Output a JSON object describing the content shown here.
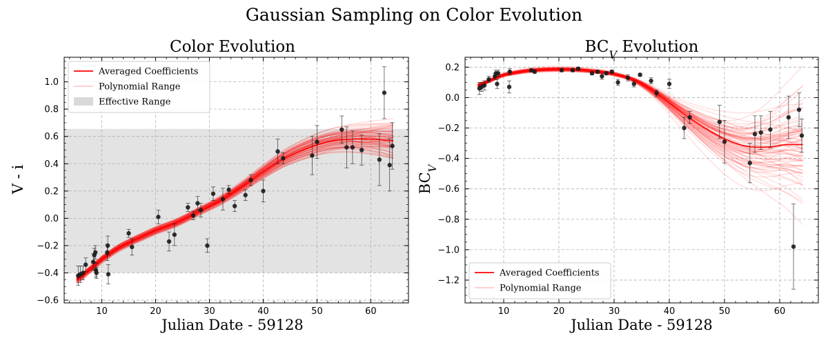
{
  "figure": {
    "title": "Gaussian Sampling on Color Evolution",
    "colors": {
      "mean": "#ff0000",
      "sample": "#ff0000",
      "point": "#1a1a1a",
      "band": "#d9d9d9",
      "grid": "#b0b0b0"
    }
  },
  "chart_data": [
    {
      "type": "scatter",
      "title": "Color Evolution",
      "xlabel": "Julian Date - 59128",
      "ylabel": "V - i",
      "xlim": [
        3,
        67
      ],
      "ylim": [
        -0.62,
        1.18
      ],
      "xticks": [
        10,
        20,
        30,
        40,
        50,
        60
      ],
      "yticks": [
        -0.6,
        -0.4,
        -0.2,
        0.0,
        0.2,
        0.4,
        0.6,
        0.8,
        1.0
      ],
      "ytick_labels": [
        "−0.6",
        "−0.4",
        "−0.2",
        "0.0",
        "0.2",
        "0.4",
        "0.6",
        "0.8",
        "1.0"
      ],
      "grid": true,
      "legend_position": "upper-left",
      "effective_range": [
        -0.4,
        0.655
      ],
      "legend": [
        "Averaged Coefficients",
        "Polynomial Range",
        "Effective Range"
      ],
      "points": [
        {
          "x": 5.6,
          "y": -0.42,
          "err": 0.07
        },
        {
          "x": 6.0,
          "y": -0.41,
          "err": 0.06
        },
        {
          "x": 6.5,
          "y": -0.4,
          "err": 0.05
        },
        {
          "x": 7.0,
          "y": -0.34,
          "err": 0.05
        },
        {
          "x": 8.4,
          "y": -0.32,
          "err": 0.06
        },
        {
          "x": 8.6,
          "y": -0.27,
          "err": 0.05
        },
        {
          "x": 8.8,
          "y": -0.25,
          "err": 0.05
        },
        {
          "x": 8.9,
          "y": -0.38,
          "err": 0.05
        },
        {
          "x": 9.0,
          "y": -0.4,
          "err": 0.04
        },
        {
          "x": 11.0,
          "y": -0.25,
          "err": 0.06
        },
        {
          "x": 11.1,
          "y": -0.2,
          "err": 0.07
        },
        {
          "x": 11.2,
          "y": -0.41,
          "err": 0.07
        },
        {
          "x": 15.0,
          "y": -0.11,
          "err": 0.03
        },
        {
          "x": 15.6,
          "y": -0.21,
          "err": 0.06
        },
        {
          "x": 20.5,
          "y": 0.01,
          "err": 0.05
        },
        {
          "x": 22.5,
          "y": -0.17,
          "err": 0.07
        },
        {
          "x": 23.5,
          "y": -0.12,
          "err": 0.08
        },
        {
          "x": 26.0,
          "y": 0.08,
          "err": 0.03
        },
        {
          "x": 27.0,
          "y": 0.02,
          "err": 0.03
        },
        {
          "x": 27.8,
          "y": 0.11,
          "err": 0.05
        },
        {
          "x": 28.4,
          "y": 0.06,
          "err": 0.05
        },
        {
          "x": 29.6,
          "y": -0.2,
          "err": 0.05
        },
        {
          "x": 30.7,
          "y": 0.18,
          "err": 0.05
        },
        {
          "x": 32.5,
          "y": 0.14,
          "err": 0.08
        },
        {
          "x": 33.6,
          "y": 0.21,
          "err": 0.03
        },
        {
          "x": 34.7,
          "y": 0.09,
          "err": 0.04
        },
        {
          "x": 36.7,
          "y": 0.17,
          "err": 0.04
        },
        {
          "x": 37.7,
          "y": 0.28,
          "err": 0.04
        },
        {
          "x": 40.0,
          "y": 0.2,
          "err": 0.08
        },
        {
          "x": 42.7,
          "y": 0.49,
          "err": 0.09
        },
        {
          "x": 43.7,
          "y": 0.44,
          "err": 0.04
        },
        {
          "x": 49.1,
          "y": 0.46,
          "err": 0.14
        },
        {
          "x": 50.0,
          "y": 0.56,
          "err": 0.12
        },
        {
          "x": 54.6,
          "y": 0.65,
          "err": 0.1
        },
        {
          "x": 55.5,
          "y": 0.52,
          "err": 0.15
        },
        {
          "x": 56.6,
          "y": 0.52,
          "err": 0.12
        },
        {
          "x": 58.3,
          "y": 0.5,
          "err": 0.11
        },
        {
          "x": 61.6,
          "y": 0.43,
          "err": 0.19
        },
        {
          "x": 62.5,
          "y": 0.92,
          "err": 0.19
        },
        {
          "x": 63.5,
          "y": 0.39,
          "err": 0.19
        },
        {
          "x": 64.0,
          "y": 0.53,
          "err": 0.17
        }
      ],
      "mean_curve": [
        [
          5.3,
          -0.45
        ],
        [
          8,
          -0.37
        ],
        [
          10,
          -0.3
        ],
        [
          13,
          -0.22
        ],
        [
          16,
          -0.16
        ],
        [
          20,
          -0.09
        ],
        [
          24,
          -0.03
        ],
        [
          28,
          0.05
        ],
        [
          32,
          0.13
        ],
        [
          36,
          0.23
        ],
        [
          40,
          0.34
        ],
        [
          44,
          0.44
        ],
        [
          48,
          0.51
        ],
        [
          52,
          0.56
        ],
        [
          56,
          0.58
        ],
        [
          60,
          0.58
        ],
        [
          64.2,
          0.57
        ]
      ]
    },
    {
      "type": "scatter",
      "title": "BC$_V$ Evolution",
      "xlabel": "Julian Date - 59128",
      "ylabel": "BC$_V$",
      "xlim": [
        3,
        67
      ],
      "ylim": [
        -1.35,
        0.265
      ],
      "xticks": [
        10,
        20,
        30,
        40,
        50,
        60
      ],
      "yticks": [
        -1.2,
        -1.0,
        -0.8,
        -0.6,
        -0.4,
        -0.2,
        0.0,
        0.2
      ],
      "ytick_labels": [
        "−1.2",
        "−1.0",
        "−0.8",
        "−0.6",
        "−0.4",
        "−0.2",
        "0.0",
        "0.2"
      ],
      "grid": true,
      "legend_position": "lower-left",
      "legend": [
        "Averaged Coefficients",
        "Polynomial Range"
      ],
      "points": [
        {
          "x": 5.6,
          "y": 0.06,
          "err": 0.04
        },
        {
          "x": 6.0,
          "y": 0.07,
          "err": 0.03
        },
        {
          "x": 6.5,
          "y": 0.08,
          "err": 0.03
        },
        {
          "x": 7.3,
          "y": 0.12,
          "err": 0.02
        },
        {
          "x": 8.4,
          "y": 0.14,
          "err": 0.02
        },
        {
          "x": 8.6,
          "y": 0.16,
          "err": 0.02
        },
        {
          "x": 8.8,
          "y": 0.09,
          "err": 0.03
        },
        {
          "x": 9.0,
          "y": 0.16,
          "err": 0.02
        },
        {
          "x": 11.0,
          "y": 0.07,
          "err": 0.04
        },
        {
          "x": 11.1,
          "y": 0.17,
          "err": 0.02
        },
        {
          "x": 15.0,
          "y": 0.18,
          "err": 0.01
        },
        {
          "x": 15.6,
          "y": 0.17,
          "err": 0.01
        },
        {
          "x": 20.5,
          "y": 0.18,
          "err": 0.01
        },
        {
          "x": 22.5,
          "y": 0.18,
          "err": 0.01
        },
        {
          "x": 23.5,
          "y": 0.19,
          "err": 0.01
        },
        {
          "x": 26.0,
          "y": 0.16,
          "err": 0.01
        },
        {
          "x": 27.0,
          "y": 0.17,
          "err": 0.01
        },
        {
          "x": 27.8,
          "y": 0.14,
          "err": 0.02
        },
        {
          "x": 28.6,
          "y": 0.16,
          "err": 0.01
        },
        {
          "x": 29.6,
          "y": 0.17,
          "err": 0.01
        },
        {
          "x": 30.7,
          "y": 0.1,
          "err": 0.02
        },
        {
          "x": 32.5,
          "y": 0.13,
          "err": 0.02
        },
        {
          "x": 33.6,
          "y": 0.09,
          "err": 0.02
        },
        {
          "x": 34.7,
          "y": 0.15,
          "err": 0.01
        },
        {
          "x": 36.7,
          "y": 0.11,
          "err": 0.02
        },
        {
          "x": 37.7,
          "y": 0.03,
          "err": 0.02
        },
        {
          "x": 40.0,
          "y": 0.09,
          "err": 0.03
        },
        {
          "x": 42.7,
          "y": -0.2,
          "err": 0.07
        },
        {
          "x": 43.7,
          "y": -0.13,
          "err": 0.04
        },
        {
          "x": 49.1,
          "y": -0.16,
          "err": 0.11
        },
        {
          "x": 50.0,
          "y": -0.29,
          "err": 0.14
        },
        {
          "x": 54.6,
          "y": -0.43,
          "err": 0.13
        },
        {
          "x": 55.5,
          "y": -0.24,
          "err": 0.12
        },
        {
          "x": 56.6,
          "y": -0.23,
          "err": 0.11
        },
        {
          "x": 58.3,
          "y": -0.21,
          "err": 0.12
        },
        {
          "x": 61.6,
          "y": -0.13,
          "err": 0.14
        },
        {
          "x": 62.5,
          "y": -0.98,
          "err": 0.28
        },
        {
          "x": 63.5,
          "y": -0.08,
          "err": 0.11
        },
        {
          "x": 64.0,
          "y": -0.25,
          "err": 0.11
        }
      ],
      "mean_curve": [
        [
          5.3,
          0.08
        ],
        [
          8,
          0.12
        ],
        [
          10,
          0.15
        ],
        [
          14,
          0.175
        ],
        [
          18,
          0.185
        ],
        [
          22,
          0.185
        ],
        [
          26,
          0.175
        ],
        [
          30,
          0.155
        ],
        [
          34,
          0.11
        ],
        [
          38,
          0.02
        ],
        [
          42,
          -0.09
        ],
        [
          46,
          -0.19
        ],
        [
          50,
          -0.27
        ],
        [
          54,
          -0.32
        ],
        [
          58,
          -0.325
        ],
        [
          61,
          -0.31
        ],
        [
          64.2,
          -0.31
        ]
      ]
    }
  ]
}
